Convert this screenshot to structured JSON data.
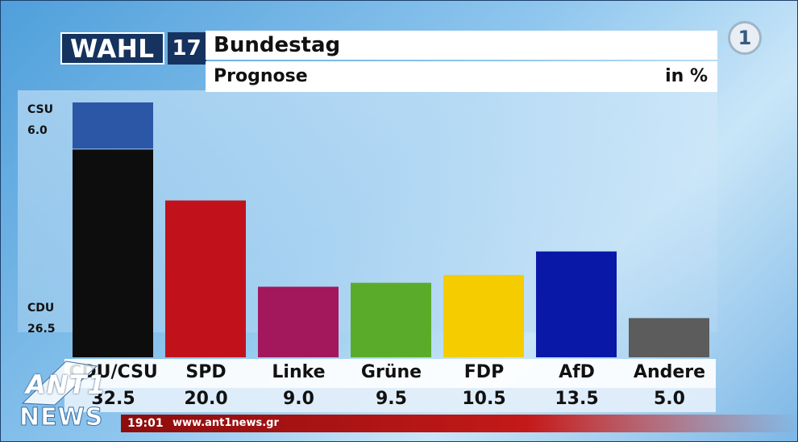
{
  "header": {
    "logo_text": "WAHL",
    "logo_number": "17",
    "title": "Bundestag",
    "subtitle": "Prognose",
    "unit": "in %"
  },
  "channel": {
    "logo_text": "1"
  },
  "chart_data": {
    "type": "bar",
    "title": "Bundestag",
    "subtitle": "Prognose",
    "unit": "in %",
    "categories": [
      "CDU/CSU",
      "SPD",
      "Linke",
      "Grüne",
      "FDP",
      "AfD",
      "Andere"
    ],
    "values": [
      32.5,
      20.0,
      9.0,
      9.5,
      10.5,
      13.5,
      5.0
    ],
    "value_labels": [
      "32.5",
      "20.0",
      "9.0",
      "9.5",
      "10.5",
      "13.5",
      "5.0"
    ],
    "colors": [
      "#0d0d0d",
      "#c1121c",
      "#a3175c",
      "#5aab2a",
      "#f5cc00",
      "#0a18a8",
      "#5c5c5c"
    ],
    "stack": {
      "category": "CDU/CSU",
      "segments": [
        {
          "name": "CDU",
          "value": 26.5,
          "label": "26.5",
          "color": "#0d0d0d"
        },
        {
          "name": "CSU",
          "value": 6.0,
          "label": "6.0",
          "color": "#2c56a6"
        }
      ]
    },
    "ylim": [
      0,
      32.5
    ]
  },
  "ticker": {
    "time": "19:01",
    "url": "www.ant1news.gr"
  },
  "watermark": {
    "brand": "ANT1",
    "news": "NEWS"
  }
}
